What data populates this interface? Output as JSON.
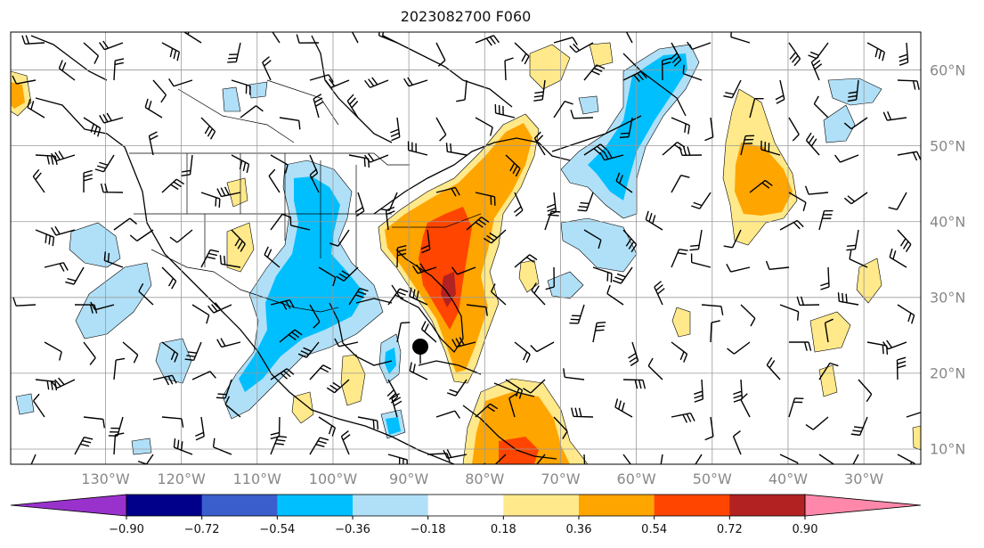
{
  "title": "2023082700 F060",
  "map": {
    "lon_labels": [
      "130°W",
      "120°W",
      "110°W",
      "100°W",
      "90°W",
      "80°W",
      "70°W",
      "60°W",
      "50°W",
      "40°W",
      "30°W"
    ],
    "lon_values": [
      -130,
      -120,
      -110,
      -100,
      -90,
      -80,
      -70,
      -60,
      -50,
      -40,
      -30
    ],
    "lat_labels": [
      "60°N",
      "50°N",
      "40°N",
      "30°N",
      "20°N",
      "10°N"
    ],
    "lat_values": [
      60,
      50,
      40,
      30,
      20,
      10
    ],
    "lon_range": [
      -142.5,
      -22.5
    ],
    "lat_range": [
      8,
      65
    ]
  },
  "colorbar": {
    "tick_labels": [
      "−0.90",
      "−0.72",
      "−0.54",
      "−0.36",
      "−0.18",
      "0.18",
      "0.36",
      "0.54",
      "0.72",
      "0.90"
    ],
    "colors": [
      "#9932cc",
      "#00008b",
      "#3a5fcd",
      "#00bfff",
      "#b0e0f8",
      "#ffffff",
      "#ffe98a",
      "#ffa500",
      "#ff4500",
      "#b22222",
      "#ff88aa"
    ],
    "extend": "both"
  },
  "colors": {
    "blue_light": "#b0e0f8",
    "blue": "#00bfff",
    "yellow": "#ffe98a",
    "orange": "#ffa500",
    "red": "#ff4500",
    "darkred": "#b22222"
  }
}
